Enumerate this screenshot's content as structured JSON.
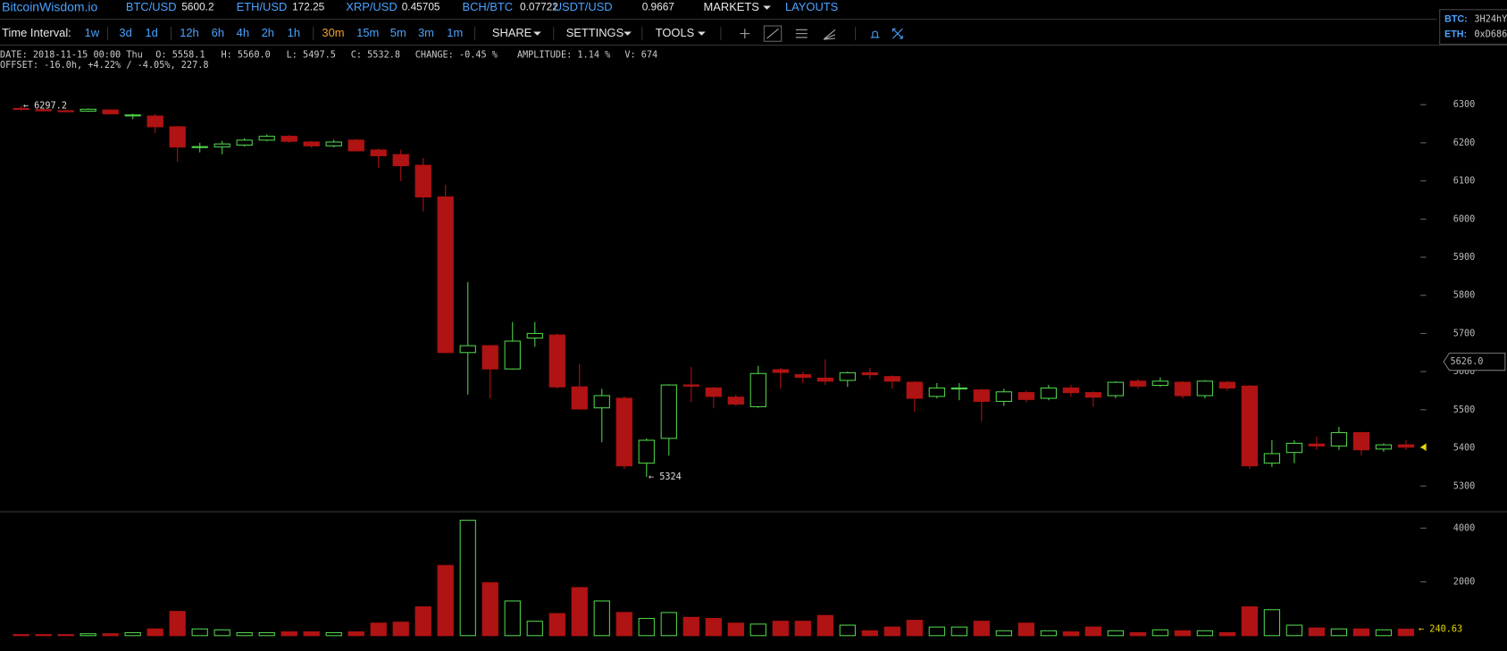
{
  "header": {
    "logo": "BitcoinWisdom.io",
    "tickers": [
      {
        "pair": "BTC/USD",
        "price": "5600.2"
      },
      {
        "pair": "ETH/USD",
        "price": "172.25"
      },
      {
        "pair": "XRP/USD",
        "price": "0.45705"
      },
      {
        "pair": "BCH/BTC",
        "price": "0.07722"
      },
      {
        "pair": "USDT/USD",
        "price": "0.9667"
      }
    ],
    "menu": [
      "MARKETS",
      "LAYOUTS"
    ],
    "donate": [
      {
        "coin": "BTC:",
        "address": "3H24hY"
      },
      {
        "coin": "ETH:",
        "address": "0xD686"
      }
    ]
  },
  "toolbar": {
    "label": "Time Interval:",
    "intervals": [
      "1w",
      "3d",
      "1d",
      "12h",
      "6h",
      "4h",
      "2h",
      "1h",
      "30m",
      "15m",
      "5m",
      "3m",
      "1m"
    ],
    "menus": [
      "SHARE",
      "SETTINGS",
      "TOOLS"
    ]
  },
  "info": {
    "line1": [
      "DATE: 2018-11-15 00:00 Thu",
      "O: 5558.1",
      "H: 5560.0",
      "L: 5497.5",
      "C: 5532.8",
      "CHANGE: -0.45 %",
      "AMPLITUDE: 1.14 %",
      "V: 674"
    ],
    "line2": "OFFSET: -16.0h, +4.22% / -4.05%, 227.8"
  },
  "chart_data": [
    {
      "type": "candlestick",
      "up_color": "#4fd14a",
      "down_color": "#b01313",
      "open": [
        6290,
        6287,
        6284,
        6283,
        6286,
        6272,
        6270,
        6242,
        6188,
        6189,
        6194,
        6207,
        6217,
        6202,
        6192,
        6207,
        6181,
        6169,
        6141,
        6058,
        5650,
        5668,
        5607,
        5688,
        5696,
        5560,
        5505,
        5530,
        5360,
        5425,
        5565,
        5557,
        5533,
        5508,
        5605,
        5592,
        5583,
        5577,
        5597,
        5587,
        5572,
        5535,
        5555,
        5552,
        5522,
        5545,
        5530,
        5557,
        5545,
        5537,
        5575,
        5564,
        5572,
        5537,
        5572,
        5562,
        5360,
        5388,
        5410,
        5405,
        5440,
        5397,
        5408
      ],
      "high": [
        6297.2,
        6290,
        6287,
        6290,
        6288,
        6276,
        6275,
        6245,
        6200,
        6205,
        6212,
        6222,
        6220,
        6205,
        6208,
        6210,
        6185,
        6182,
        6160,
        6090,
        5835,
        5670,
        5730,
        5730,
        5700,
        5620,
        5555,
        5535,
        5425,
        5567,
        5612,
        5560,
        5540,
        5615,
        5610,
        5600,
        5632,
        5600,
        5610,
        5590,
        5575,
        5570,
        5570,
        5555,
        5555,
        5550,
        5565,
        5565,
        5548,
        5575,
        5580,
        5585,
        5575,
        5578,
        5576,
        5565,
        5420,
        5420,
        5430,
        5455,
        5442,
        5412,
        5420
      ],
      "low": [
        6285,
        6282,
        6280,
        6281,
        6274,
        6262,
        6225,
        6150,
        6175,
        6170,
        6190,
        6204,
        6200,
        6187,
        6188,
        6177,
        6135,
        6100,
        6020,
        5650,
        5540,
        5530,
        5605,
        5665,
        5555,
        5500,
        5415,
        5345,
        5324,
        5380,
        5520,
        5505,
        5510,
        5505,
        5555,
        5570,
        5565,
        5560,
        5580,
        5555,
        5495,
        5530,
        5525,
        5470,
        5510,
        5520,
        5525,
        5535,
        5508,
        5530,
        5555,
        5560,
        5530,
        5530,
        5550,
        5345,
        5350,
        5360,
        5395,
        5395,
        5380,
        5390,
        5395
      ],
      "close": [
        6288,
        6284,
        6282,
        6288,
        6276,
        6273,
        6242,
        6189,
        6190,
        6197,
        6207,
        6217,
        6204,
        6192,
        6202,
        6179,
        6166,
        6140,
        6058,
        5650,
        5668,
        5607,
        5680,
        5700,
        5560,
        5502,
        5537,
        5353,
        5420,
        5565,
        5562,
        5535,
        5515,
        5595,
        5598,
        5585,
        5575,
        5597,
        5592,
        5575,
        5530,
        5557,
        5557,
        5522,
        5547,
        5527,
        5557,
        5545,
        5533,
        5572,
        5562,
        5575,
        5537,
        5575,
        5557,
        5353,
        5385,
        5412,
        5405,
        5440,
        5395,
        5408,
        5402
      ],
      "ylim": [
        5235,
        6373
      ],
      "yticks": [
        5300,
        5400,
        5500,
        5600,
        5700,
        5800,
        5900,
        6000,
        6100,
        6200,
        6300
      ],
      "annotations": [
        {
          "text": "← 6297.2",
          "index": 0,
          "at": "high"
        },
        {
          "text": "← 5324",
          "index": 28,
          "at": "low"
        }
      ],
      "price_marker": {
        "value": 5626,
        "label": "5626.0"
      }
    },
    {
      "type": "volume",
      "up_color": "#4fd14a",
      "down_color": "#b01313",
      "values": [
        40,
        40,
        40,
        70,
        70,
        110,
        250,
        900,
        250,
        215,
        110,
        110,
        140,
        140,
        110,
        140,
        465,
        500,
        1070,
        2610,
        4290,
        1965,
        1290,
        535,
        820,
        1785,
        1290,
        860,
        640,
        860,
        680,
        640,
        465,
        430,
        535,
        535,
        750,
        390,
        180,
        320,
        570,
        320,
        320,
        535,
        180,
        465,
        180,
        140,
        320,
        180,
        110,
        215,
        180,
        180,
        110,
        1070,
        965,
        390,
        285,
        250,
        250,
        215,
        240.63
      ],
      "ylim": [
        0,
        4464
      ],
      "yticks": [
        2000,
        4000
      ],
      "last_label": "← 240.63"
    }
  ]
}
